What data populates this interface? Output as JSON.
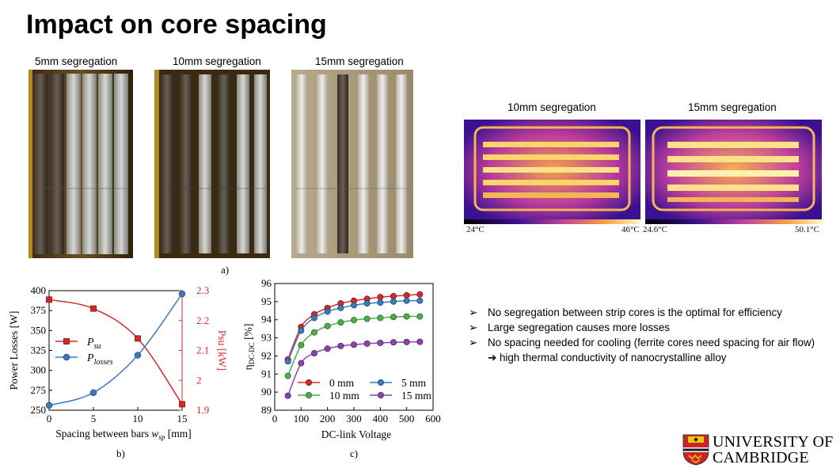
{
  "title": "Impact on core spacing",
  "photos": {
    "labels": [
      "5mm segregation",
      "10mm segregation",
      "15mm segregation"
    ]
  },
  "thermal": {
    "labels": [
      "10mm segregation",
      "15mm segregation"
    ],
    "scale_left": {
      "min": "24°C",
      "max": "46°C"
    },
    "scale_right": {
      "min": "24.6°C",
      "max": "50.1°C"
    }
  },
  "captions": {
    "a": "a)",
    "b": "b)",
    "c": "c)"
  },
  "bullets": [
    "No segregation between strip cores is the optimal for efficiency",
    "Large segregation causes more losses",
    "No spacing needed for cooling (ferrite cores need spacing for air flow) ➔ high thermal conductivity of nanocrystalline alloy"
  ],
  "bullet_marker": "➢",
  "logo": {
    "line1": "UNIVERSITY OF",
    "line2": "CAMBRIDGE"
  },
  "colors": {
    "red": "#d62a2a",
    "blue": "#3a7bbf",
    "green": "#4cae4c",
    "purple": "#8e44ad"
  },
  "chart_data": [
    {
      "type": "line",
      "x": [
        0,
        5,
        10,
        15
      ],
      "xlabel": "Spacing between bars w_sp [mm]",
      "xlabel_parts": {
        "main": "Spacing between bars ",
        "var": "w",
        "sub": "sp",
        "unit": " [mm]"
      },
      "xlim": [
        0,
        15
      ],
      "xticks": [
        "0",
        "5",
        "10",
        "15"
      ],
      "ylabel": "Power Losses  [W]",
      "ylim": [
        250,
        400
      ],
      "yticks": [
        "250",
        "275",
        "300",
        "325",
        "350",
        "375",
        "400"
      ],
      "y2label": "Psu [kW]",
      "y2lim": [
        1.9,
        2.3
      ],
      "y2ticks": [
        "1.9",
        "2",
        "2.1",
        "2.2",
        "2.3"
      ],
      "series": [
        {
          "name": "P_su",
          "legend_main": "P",
          "legend_sub": "su",
          "axis": "right",
          "marker": "square",
          "color": "#d62a2a",
          "values": [
            2.27,
            2.24,
            2.14,
            1.92
          ]
        },
        {
          "name": "P_losses",
          "legend_main": "P",
          "legend_sub": "losses",
          "axis": "left",
          "marker": "circle",
          "color": "#3a7bbf",
          "values": [
            256,
            272,
            319,
            396
          ]
        }
      ]
    },
    {
      "type": "line",
      "x": [
        50,
        100,
        150,
        200,
        250,
        300,
        350,
        400,
        450,
        500,
        550
      ],
      "xlabel": "DC-link Voltage",
      "xlim": [
        0,
        600
      ],
      "xticks": [
        "0",
        "100",
        "200",
        "300",
        "400",
        "500",
        "600"
      ],
      "ylabel": "η DC-DC [%]",
      "ylabel_parts": {
        "main": "η",
        "sub": "DC-DC",
        "unit": " [%]"
      },
      "ylim": [
        89,
        96
      ],
      "yticks": [
        "89",
        "90",
        "91",
        "92",
        "93",
        "94",
        "95",
        "96"
      ],
      "series": [
        {
          "name": "0 mm",
          "color": "#d62a2a",
          "values": [
            91.8,
            93.6,
            94.3,
            94.65,
            94.9,
            95.05,
            95.15,
            95.25,
            95.3,
            95.35,
            95.4
          ]
        },
        {
          "name": "5 mm",
          "color": "#3a7bbf",
          "values": [
            91.7,
            93.4,
            94.1,
            94.45,
            94.65,
            94.8,
            94.9,
            94.95,
            95.0,
            95.05,
            95.05
          ]
        },
        {
          "name": "10 mm",
          "color": "#4cae4c",
          "values": [
            90.9,
            92.6,
            93.3,
            93.65,
            93.85,
            93.98,
            94.05,
            94.1,
            94.15,
            94.18,
            94.18
          ]
        },
        {
          "name": "15 mm",
          "color": "#8e44ad",
          "values": [
            89.8,
            91.6,
            92.15,
            92.4,
            92.55,
            92.62,
            92.68,
            92.72,
            92.75,
            92.77,
            92.78
          ]
        }
      ]
    }
  ]
}
